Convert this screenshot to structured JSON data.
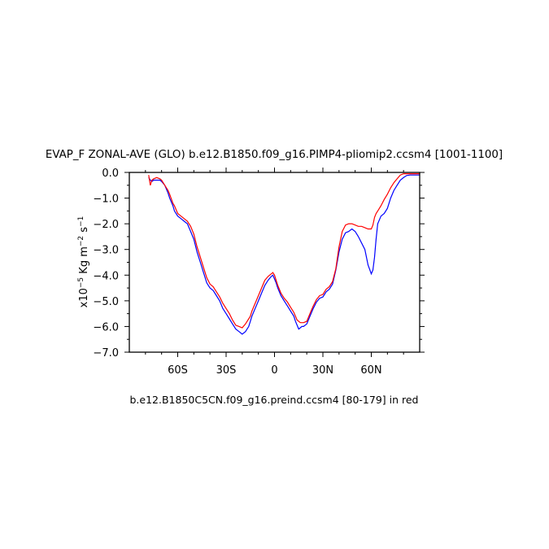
{
  "chart_data": {
    "type": "line",
    "title": "EVAP_F ZONAL-AVE (GLO) b.e12.B1850.f09_g16.PIMP4-pliomip2.ccsm4 [1001-1100]",
    "subtitle": "b.e12.B1850C5CN.f09_g16.preind.ccsm4 [80-179] in red",
    "ylabel_parts": {
      "prefix": "x10",
      "exp1": "−5",
      "unit1": " Kg m",
      "exp2": "−2",
      "unit2": " s",
      "exp3": "−1"
    },
    "xlabel": "",
    "xlim": [
      -90,
      90
    ],
    "ylim": [
      -7.0,
      0.0
    ],
    "x_ticks": [
      {
        "value": -60,
        "label": "60S"
      },
      {
        "value": -30,
        "label": "30S"
      },
      {
        "value": 0,
        "label": "0"
      },
      {
        "value": 30,
        "label": "30N"
      },
      {
        "value": 60,
        "label": "60N"
      }
    ],
    "y_ticks": [
      {
        "value": 0,
        "label": "0.0"
      },
      {
        "value": -1,
        "label": "−1.0"
      },
      {
        "value": -2,
        "label": "−2.0"
      },
      {
        "value": -3,
        "label": "−3.0"
      },
      {
        "value": -4,
        "label": "−4.0"
      },
      {
        "value": -5,
        "label": "−5.0"
      },
      {
        "value": -6,
        "label": "−6.0"
      },
      {
        "value": -7,
        "label": "−7.0"
      }
    ],
    "grid": false,
    "series": [
      {
        "color": "#0000ff",
        "x": [
          -78,
          -77,
          -76,
          -75,
          -73,
          -71,
          -70,
          -68,
          -66,
          -65,
          -63,
          -62,
          -60,
          -58,
          -56,
          -54,
          -52,
          -50,
          -48,
          -46,
          -44,
          -42,
          -40,
          -38,
          -36,
          -34,
          -32,
          -30,
          -28,
          -26,
          -24,
          -22,
          -20,
          -18,
          -16,
          -15,
          -14,
          -12,
          -10,
          -8,
          -6,
          -4,
          -2,
          -1,
          0,
          1,
          2,
          4,
          6,
          8,
          10,
          12,
          13,
          14,
          15,
          16,
          17,
          18,
          20,
          22,
          24,
          26,
          28,
          30,
          32,
          34,
          36,
          38,
          40,
          42,
          44,
          46,
          48,
          50,
          52,
          54,
          56,
          58,
          60,
          61,
          62,
          63,
          64,
          66,
          68,
          70,
          72,
          74,
          76,
          78,
          80,
          82,
          84,
          86,
          88,
          90
        ],
        "values": [
          -0.2,
          -0.3,
          -0.35,
          -0.3,
          -0.3,
          -0.3,
          -0.35,
          -0.5,
          -0.8,
          -1.0,
          -1.3,
          -1.5,
          -1.7,
          -1.8,
          -1.9,
          -2.0,
          -2.3,
          -2.6,
          -3.1,
          -3.5,
          -3.9,
          -4.3,
          -4.5,
          -4.6,
          -4.8,
          -5.0,
          -5.3,
          -5.5,
          -5.7,
          -5.9,
          -6.1,
          -6.2,
          -6.3,
          -6.2,
          -6.0,
          -5.8,
          -5.6,
          -5.3,
          -5.0,
          -4.7,
          -4.4,
          -4.2,
          -4.05,
          -4.0,
          -4.15,
          -4.3,
          -4.5,
          -4.8,
          -5.0,
          -5.2,
          -5.4,
          -5.6,
          -5.8,
          -5.95,
          -6.1,
          -6.05,
          -6.0,
          -6.0,
          -5.9,
          -5.6,
          -5.3,
          -5.05,
          -4.9,
          -4.85,
          -4.65,
          -4.55,
          -4.35,
          -3.8,
          -3.1,
          -2.6,
          -2.35,
          -2.3,
          -2.2,
          -2.3,
          -2.5,
          -2.75,
          -3.0,
          -3.6,
          -3.95,
          -3.8,
          -3.3,
          -2.6,
          -2.0,
          -1.7,
          -1.6,
          -1.4,
          -1.0,
          -0.7,
          -0.5,
          -0.3,
          -0.2,
          -0.12,
          -0.1,
          -0.1,
          -0.1,
          -0.1
        ]
      },
      {
        "color": "#ff0000",
        "x": [
          -78,
          -77,
          -76,
          -75,
          -73,
          -71,
          -70,
          -68,
          -66,
          -65,
          -63,
          -62,
          -60,
          -58,
          -56,
          -54,
          -52,
          -50,
          -48,
          -46,
          -44,
          -42,
          -40,
          -38,
          -36,
          -34,
          -32,
          -30,
          -28,
          -26,
          -24,
          -22,
          -20,
          -18,
          -16,
          -15,
          -14,
          -12,
          -10,
          -8,
          -6,
          -4,
          -2,
          -1,
          0,
          1,
          2,
          4,
          6,
          8,
          10,
          12,
          13,
          14,
          15,
          16,
          17,
          18,
          20,
          22,
          24,
          26,
          28,
          30,
          32,
          34,
          36,
          38,
          40,
          42,
          44,
          46,
          48,
          50,
          52,
          54,
          56,
          58,
          60,
          61,
          62,
          63,
          64,
          66,
          68,
          70,
          72,
          74,
          76,
          78,
          80,
          82,
          84,
          86,
          88,
          90
        ],
        "values": [
          -0.1,
          -0.5,
          -0.3,
          -0.25,
          -0.2,
          -0.25,
          -0.3,
          -0.5,
          -0.7,
          -0.85,
          -1.2,
          -1.3,
          -1.6,
          -1.7,
          -1.8,
          -1.9,
          -2.1,
          -2.4,
          -2.9,
          -3.3,
          -3.7,
          -4.1,
          -4.35,
          -4.45,
          -4.65,
          -4.85,
          -5.1,
          -5.3,
          -5.5,
          -5.75,
          -5.95,
          -6.0,
          -6.05,
          -5.9,
          -5.7,
          -5.6,
          -5.4,
          -5.1,
          -4.8,
          -4.5,
          -4.2,
          -4.05,
          -3.95,
          -3.9,
          -4.0,
          -4.2,
          -4.4,
          -4.7,
          -4.9,
          -5.05,
          -5.25,
          -5.45,
          -5.6,
          -5.75,
          -5.8,
          -5.85,
          -5.85,
          -5.85,
          -5.8,
          -5.5,
          -5.2,
          -4.95,
          -4.8,
          -4.75,
          -4.55,
          -4.45,
          -4.25,
          -3.75,
          -2.9,
          -2.3,
          -2.05,
          -2.0,
          -2.0,
          -2.05,
          -2.1,
          -2.1,
          -2.15,
          -2.2,
          -2.2,
          -2.05,
          -1.75,
          -1.6,
          -1.5,
          -1.3,
          -1.05,
          -0.85,
          -0.6,
          -0.4,
          -0.25,
          -0.1,
          -0.05,
          -0.05,
          -0.05,
          -0.05,
          -0.05,
          -0.05
        ]
      }
    ]
  }
}
